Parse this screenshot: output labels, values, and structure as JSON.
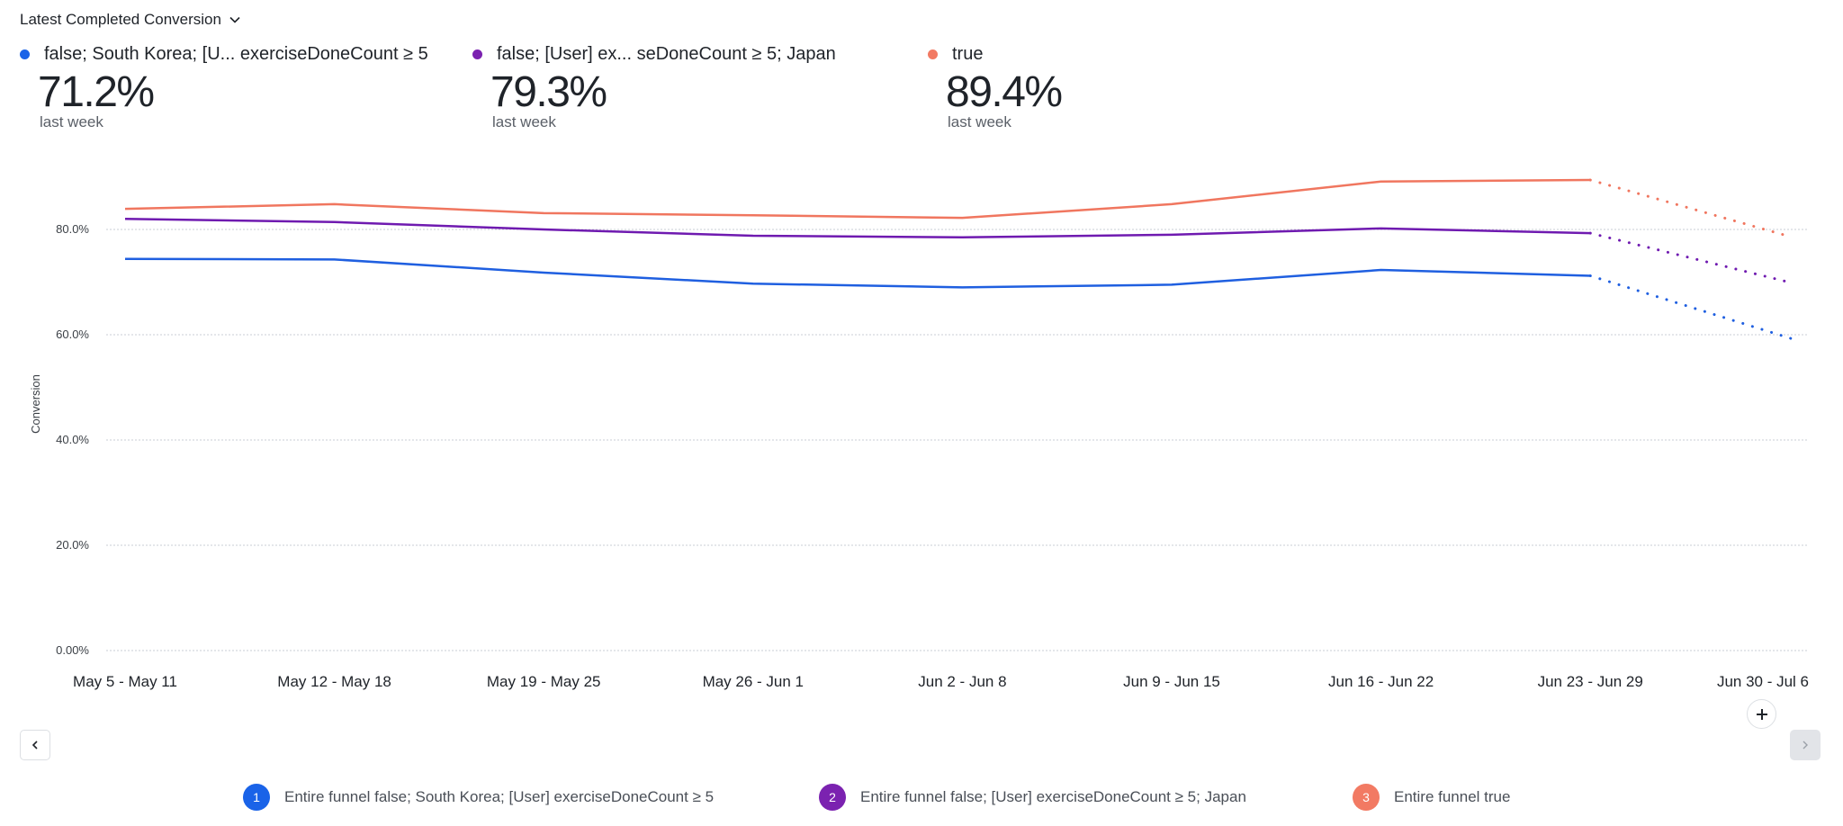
{
  "header": {
    "title": "Latest Completed Conversion",
    "dropdown_icon": "chevron-down-icon"
  },
  "summary": [
    {
      "label": "false; South Korea; [U... exerciseDoneCount ≥ 5",
      "value": "71.2%",
      "sub": "last week",
      "color": "#1a63e8"
    },
    {
      "label": "false; [User] ex... seDoneCount ≥ 5; Japan",
      "value": "79.3%",
      "sub": "last week",
      "color": "#7b22b0"
    },
    {
      "label": "true",
      "value": "89.4%",
      "sub": "last week",
      "color": "#f27a63"
    }
  ],
  "chart_data": {
    "type": "line",
    "title": "Latest Completed Conversion",
    "xlabel": "",
    "ylabel": "Conversion",
    "ylim": [
      0,
      100
    ],
    "yticks": [
      0,
      20,
      40,
      60,
      80
    ],
    "ytick_labels": [
      "0.00%",
      "20.0%",
      "40.0%",
      "60.0%",
      "80.0%"
    ],
    "grid": true,
    "legend_position": "top-left",
    "categories": [
      "May 5 - May 11",
      "May 12 - May 18",
      "May 19 - May 25",
      "May 26 - Jun 1",
      "Jun 2 - Jun 8",
      "Jun 9 - Jun 15",
      "Jun 16 - Jun 22",
      "Jun 23 - Jun 29",
      "Jun 30 - Jul 6"
    ],
    "series": [
      {
        "name": "Entire funnel false; South Korea; [User] exerciseDoneCount ≥ 5",
        "color": "#1f5fe0",
        "values": [
          74.4,
          74.3,
          71.8,
          69.7,
          69.0,
          69.5,
          72.3,
          71.2,
          59.3
        ],
        "projected_from_index": 7
      },
      {
        "name": "Entire funnel false; [User] exerciseDoneCount ≥ 5; Japan",
        "color": "#6f1ab0",
        "values": [
          82.0,
          81.4,
          80.0,
          78.8,
          78.5,
          79.0,
          80.2,
          79.3,
          69.9
        ],
        "projected_from_index": 7
      },
      {
        "name": "Entire funnel true",
        "color": "#f0765f",
        "values": [
          83.9,
          84.8,
          83.1,
          82.7,
          82.2,
          84.8,
          89.1,
          89.4,
          78.6
        ],
        "projected_from_index": 7
      }
    ]
  },
  "controls": {
    "prev_icon": "chevron-left-icon",
    "next_icon": "chevron-right-icon",
    "add_icon": "plus-icon"
  },
  "bottom_legend": [
    {
      "index": "1",
      "label": "Entire funnel false; South Korea; [User] exerciseDoneCount ≥ 5",
      "color": "#1a63e8"
    },
    {
      "index": "2",
      "label": "Entire funnel false; [User] exerciseDoneCount ≥ 5; Japan",
      "color": "#7b22b0"
    },
    {
      "index": "3",
      "label": "Entire funnel true",
      "color": "#f27a63"
    }
  ]
}
